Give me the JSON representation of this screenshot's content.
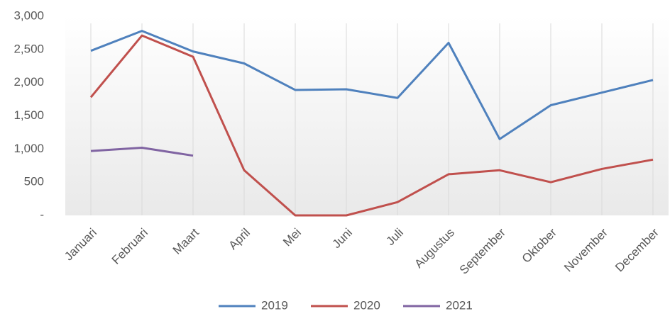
{
  "chart_data": {
    "type": "line",
    "categories": [
      "Januari",
      "Februari",
      "Maart",
      "April",
      "Mei",
      "Juni",
      "Juli",
      "Augustus",
      "September",
      "Oktober",
      "November",
      "December"
    ],
    "series": [
      {
        "name": "2019",
        "color": "#4f81bd",
        "values": [
          2480,
          2780,
          2470,
          2290,
          1890,
          1900,
          1770,
          2600,
          1150,
          1660,
          1850,
          2040
        ]
      },
      {
        "name": "2020",
        "color": "#c0504d",
        "values": [
          1780,
          2710,
          2390,
          680,
          0,
          0,
          200,
          620,
          680,
          500,
          700,
          840
        ]
      },
      {
        "name": "2021",
        "color": "#8064a2",
        "values": [
          970,
          1020,
          900,
          null,
          null,
          null,
          null,
          null,
          null,
          null,
          null,
          null
        ]
      }
    ],
    "ylim": [
      0,
      3000
    ],
    "yticks": [
      {
        "value": 0,
        "label": "-"
      },
      500,
      {
        "value": 1000,
        "label": "1,000"
      },
      {
        "value": 1500,
        "label": "1,500"
      },
      {
        "value": 2000,
        "label": "2,000"
      },
      {
        "value": 2500,
        "label": "2,500"
      },
      {
        "value": 3000,
        "label": "3,000"
      }
    ]
  }
}
